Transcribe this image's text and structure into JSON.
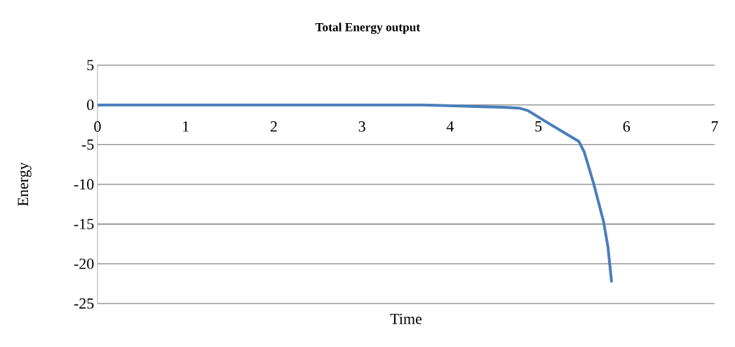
{
  "chart_data": {
    "type": "line",
    "title": "Total Energy output",
    "xlabel": "Time",
    "ylabel": "Energy",
    "series": [
      {
        "color": "#4a7ebb",
        "x": [
          0,
          1,
          2,
          3,
          3.7,
          3.98,
          4.3,
          4.6,
          4.78,
          4.88,
          5.07,
          5.34,
          5.46,
          5.52,
          5.63,
          5.74,
          5.79,
          5.83
        ],
        "values": [
          0,
          0,
          0,
          0,
          0,
          -0.1,
          -0.2,
          -0.3,
          -0.4,
          -0.7,
          -2.0,
          -3.8,
          -4.6,
          -5.9,
          -10,
          -14.7,
          -17.9,
          -22.2
        ]
      }
    ],
    "xlim": [
      0,
      7
    ],
    "xticks": [
      0,
      1,
      2,
      3,
      4,
      5,
      6,
      7
    ],
    "ylim": [
      -25,
      5
    ],
    "yticks": [
      5,
      0,
      -5,
      -10,
      -15,
      -20,
      -25
    ],
    "grid": "y",
    "legend": false,
    "marker": "none",
    "line_style": "solid"
  }
}
